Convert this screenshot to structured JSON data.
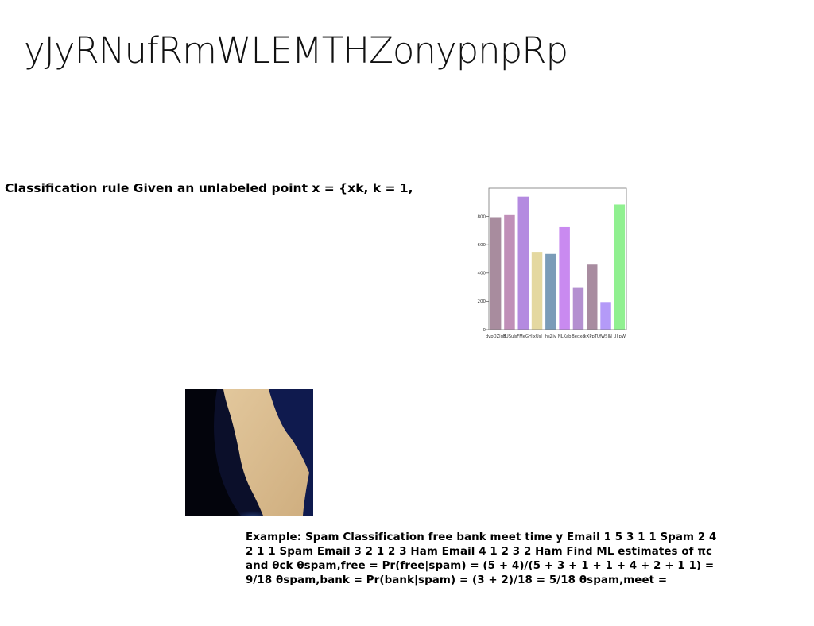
{
  "slide": {
    "title": "yJyRNufRmWLEMTHZonypnpRp",
    "classification_text": "Classification rule Given an unlabeled point x = {xk, k = 1,",
    "example_text": "Example: Spam Classification free bank meet time y Email 1 5 3 1 1 Spam 2 4 2 1 1 Spam Email 3 2 1 2 3 Ham Email 4 1 2 3 2 Ham Find ML estimates of πc and θck θspam,free = Pr(free|spam) = (5 + 4)/(5 + 3 + 1 + 1 + 4 + 2 + 1 1) = 9/18 θspam,bank = Pr(bank|spam) = (3 + 2)/18 = 5/18 θspam,meet ="
  },
  "chart_data": {
    "type": "bar",
    "categories": [
      "dvpQZlgB",
      "fUSul",
      "sFMeGH",
      "lxUsl",
      "hsZjy",
      "NLKab",
      "Bedxd",
      "kXPpTU",
      "fWSIN",
      "UJ pW"
    ],
    "values": [
      795,
      810,
      940,
      550,
      535,
      725,
      300,
      465,
      195,
      885
    ],
    "colors": [
      "#a88c9e",
      "#c08fb8",
      "#b48ae0",
      "#e4d8a0",
      "#7b9cb8",
      "#c98af0",
      "#b490d0",
      "#a88ca0",
      "#b49af8",
      "#90f090"
    ],
    "ylim": [
      0,
      1000
    ],
    "yticks": [
      0,
      200,
      400,
      600,
      800
    ]
  }
}
